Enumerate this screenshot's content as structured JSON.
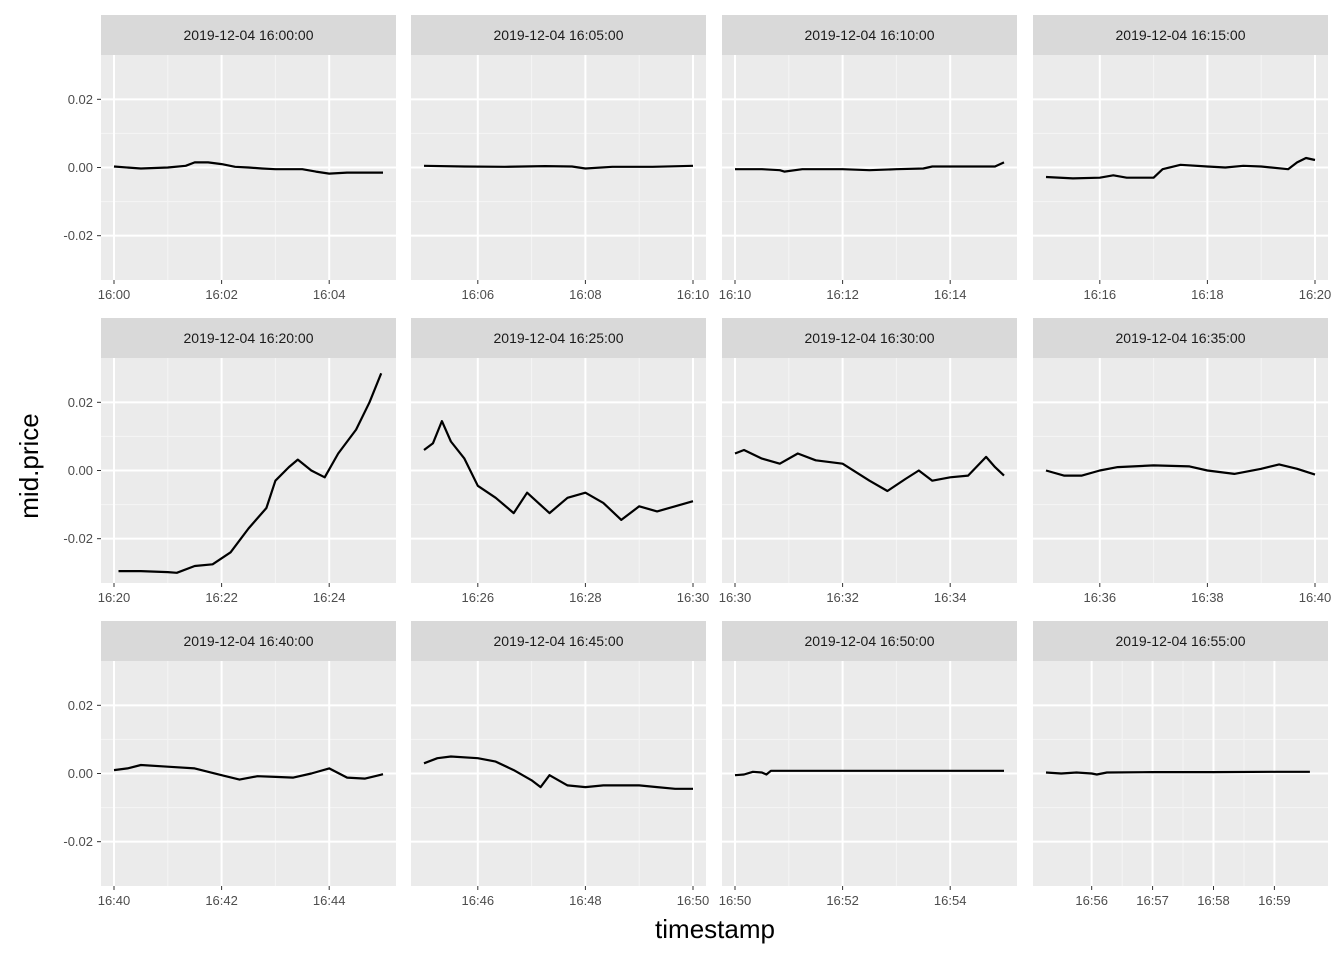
{
  "chart_data": {
    "type": "line",
    "xlabel": "timestamp",
    "ylabel": "mid.price",
    "ylim": [
      -0.033,
      0.033
    ],
    "yticks": [
      {
        "value": 0.02,
        "label": "0.02"
      },
      {
        "value": 0.0,
        "label": "0.00"
      },
      {
        "value": -0.02,
        "label": "-0.02"
      }
    ],
    "grid": true,
    "line_color": "#000000",
    "panel_background": "#ebebeb",
    "strip_background": "#d9d9d9",
    "facets": [
      {
        "label": "2019-12-04 16:00:00",
        "xlim": [
          "16:00",
          "16:05"
        ],
        "xticks": [
          "16:00",
          "16:02",
          "16:04"
        ],
        "x": [
          "16:00:00",
          "16:00:30",
          "16:01:00",
          "16:01:20",
          "16:01:30",
          "16:01:45",
          "16:02:00",
          "16:02:15",
          "16:02:30",
          "16:02:45",
          "16:03:00",
          "16:03:30",
          "16:03:45",
          "16:04:00",
          "16:04:20",
          "16:04:40",
          "16:05:00"
        ],
        "y": [
          0.0003,
          -0.0003,
          0.0,
          0.0005,
          0.0015,
          0.0015,
          0.001,
          0.0002,
          0.0,
          -0.0003,
          -0.0005,
          -0.0005,
          -0.0012,
          -0.0018,
          -0.0015,
          -0.0015,
          -0.0015
        ]
      },
      {
        "label": "2019-12-04 16:05:00",
        "xlim": [
          "16:05",
          "16:10"
        ],
        "xticks": [
          "16:06",
          "16:08",
          "16:10"
        ],
        "x": [
          "16:05:00",
          "16:05:45",
          "16:06:30",
          "16:07:15",
          "16:07:45",
          "16:08:00",
          "16:08:30",
          "16:09:15",
          "16:10:00"
        ],
        "y": [
          0.0005,
          0.0003,
          0.0002,
          0.0004,
          0.0003,
          -0.0003,
          0.0002,
          0.0002,
          0.0005
        ]
      },
      {
        "label": "2019-12-04 16:10:00",
        "xlim": [
          "16:10",
          "16:15"
        ],
        "xticks": [
          "16:10",
          "16:12",
          "16:14"
        ],
        "x": [
          "16:10:00",
          "16:10:30",
          "16:10:50",
          "16:10:55",
          "16:11:15",
          "16:12:00",
          "16:12:30",
          "16:13:00",
          "16:13:30",
          "16:13:40",
          "16:14:20",
          "16:14:50",
          "16:15:00"
        ],
        "y": [
          -0.0005,
          -0.0005,
          -0.0008,
          -0.0012,
          -0.0005,
          -0.0005,
          -0.0008,
          -0.0005,
          -0.0003,
          0.0003,
          0.0003,
          0.0003,
          0.0015
        ]
      },
      {
        "label": "2019-12-04 16:15:00",
        "xlim": [
          "16:15",
          "16:20"
        ],
        "xticks": [
          "16:16",
          "16:18",
          "16:20"
        ],
        "x": [
          "16:15:00",
          "16:15:30",
          "16:16:00",
          "16:16:15",
          "16:16:30",
          "16:17:00",
          "16:17:10",
          "16:17:30",
          "16:18:00",
          "16:18:20",
          "16:18:40",
          "16:19:00",
          "16:19:30",
          "16:19:40",
          "16:19:50",
          "16:20:00"
        ],
        "y": [
          -0.0028,
          -0.0032,
          -0.003,
          -0.0023,
          -0.003,
          -0.003,
          -0.0005,
          0.0008,
          0.0003,
          0.0,
          0.0005,
          0.0003,
          -0.0005,
          0.0015,
          0.0028,
          0.0022
        ]
      },
      {
        "label": "2019-12-04 16:20:00",
        "xlim": [
          "16:20",
          "16:25"
        ],
        "xticks": [
          "16:20",
          "16:22",
          "16:24"
        ],
        "x": [
          "16:20:05",
          "16:20:30",
          "16:21:00",
          "16:21:10",
          "16:21:30",
          "16:21:50",
          "16:22:10",
          "16:22:30",
          "16:22:50",
          "16:23:00",
          "16:23:15",
          "16:23:25",
          "16:23:40",
          "16:23:55",
          "16:24:10",
          "16:24:30",
          "16:24:45",
          "16:24:58"
        ],
        "y": [
          -0.0295,
          -0.0295,
          -0.0298,
          -0.03,
          -0.028,
          -0.0275,
          -0.024,
          -0.017,
          -0.011,
          -0.003,
          0.001,
          0.0032,
          0.0,
          -0.002,
          0.005,
          0.012,
          0.02,
          0.0285
        ]
      },
      {
        "label": "2019-12-04 16:25:00",
        "xlim": [
          "16:25",
          "16:30"
        ],
        "xticks": [
          "16:26",
          "16:28",
          "16:30"
        ],
        "x": [
          "16:25:00",
          "16:25:10",
          "16:25:20",
          "16:25:30",
          "16:25:45",
          "16:26:00",
          "16:26:20",
          "16:26:40",
          "16:26:55",
          "16:27:20",
          "16:27:40",
          "16:28:00",
          "16:28:20",
          "16:28:40",
          "16:29:00",
          "16:29:20",
          "16:29:40",
          "16:30:00"
        ],
        "y": [
          0.006,
          0.008,
          0.0145,
          0.0085,
          0.0035,
          -0.0045,
          -0.008,
          -0.0125,
          -0.0065,
          -0.0125,
          -0.008,
          -0.0065,
          -0.0095,
          -0.0145,
          -0.0105,
          -0.012,
          -0.0105,
          -0.009
        ]
      },
      {
        "label": "2019-12-04 16:30:00",
        "xlim": [
          "16:30",
          "16:35"
        ],
        "xticks": [
          "16:30",
          "16:32",
          "16:34"
        ],
        "x": [
          "16:30:00",
          "16:30:10",
          "16:30:30",
          "16:30:50",
          "16:31:10",
          "16:31:30",
          "16:32:00",
          "16:32:30",
          "16:32:50",
          "16:33:10",
          "16:33:25",
          "16:33:40",
          "16:34:00",
          "16:34:20",
          "16:34:40",
          "16:34:50",
          "16:35:00"
        ],
        "y": [
          0.005,
          0.006,
          0.0035,
          0.002,
          0.005,
          0.003,
          0.002,
          -0.003,
          -0.006,
          -0.0025,
          0.0,
          -0.003,
          -0.002,
          -0.0015,
          0.004,
          0.001,
          -0.0015
        ]
      },
      {
        "label": "2019-12-04 16:35:00",
        "xlim": [
          "16:35",
          "16:40"
        ],
        "xticks": [
          "16:36",
          "16:38",
          "16:40"
        ],
        "x": [
          "16:35:00",
          "16:35:20",
          "16:35:40",
          "16:36:00",
          "16:36:20",
          "16:37:00",
          "16:37:40",
          "16:38:00",
          "16:38:30",
          "16:39:00",
          "16:39:20",
          "16:39:40",
          "16:40:00"
        ],
        "y": [
          0.0,
          -0.0015,
          -0.0015,
          0.0,
          0.001,
          0.0015,
          0.0012,
          0.0,
          -0.001,
          0.0005,
          0.0018,
          0.0005,
          -0.0012
        ]
      },
      {
        "label": "2019-12-04 16:40:00",
        "xlim": [
          "16:40",
          "16:45"
        ],
        "xticks": [
          "16:40",
          "16:42",
          "16:44"
        ],
        "x": [
          "16:40:00",
          "16:40:15",
          "16:40:30",
          "16:41:00",
          "16:41:30",
          "16:42:00",
          "16:42:20",
          "16:42:40",
          "16:43:00",
          "16:43:20",
          "16:43:40",
          "16:44:00",
          "16:44:20",
          "16:44:40",
          "16:45:00"
        ],
        "y": [
          0.001,
          0.0015,
          0.0025,
          0.002,
          0.0015,
          -0.0005,
          -0.0018,
          -0.0008,
          -0.001,
          -0.0012,
          0.0,
          0.0015,
          -0.0012,
          -0.0015,
          -0.0002
        ]
      },
      {
        "label": "2019-12-04 16:45:00",
        "xlim": [
          "16:45",
          "16:50"
        ],
        "xticks": [
          "16:46",
          "16:48",
          "16:50"
        ],
        "x": [
          "16:45:00",
          "16:45:15",
          "16:45:30",
          "16:46:00",
          "16:46:20",
          "16:46:40",
          "16:47:00",
          "16:47:10",
          "16:47:20",
          "16:47:40",
          "16:48:00",
          "16:48:20",
          "16:48:40",
          "16:49:00",
          "16:49:20",
          "16:49:40",
          "16:50:00"
        ],
        "y": [
          0.003,
          0.0045,
          0.005,
          0.0045,
          0.0035,
          0.001,
          -0.002,
          -0.004,
          -0.0005,
          -0.0035,
          -0.004,
          -0.0035,
          -0.0035,
          -0.0035,
          -0.004,
          -0.0045,
          -0.0045
        ]
      },
      {
        "label": "2019-12-04 16:50:00",
        "xlim": [
          "16:50",
          "16:55"
        ],
        "xticks": [
          "16:50",
          "16:52",
          "16:54"
        ],
        "x": [
          "16:50:00",
          "16:50:10",
          "16:50:20",
          "16:50:30",
          "16:50:35",
          "16:50:40",
          "16:51:00",
          "16:52:00",
          "16:53:00",
          "16:54:00",
          "16:55:00"
        ],
        "y": [
          -0.0005,
          -0.0003,
          0.0005,
          0.0003,
          -0.0003,
          0.0008,
          0.0008,
          0.0008,
          0.0008,
          0.0008,
          0.0008
        ]
      },
      {
        "label": "2019-12-04 16:55:00",
        "xlim": [
          "16:55:15",
          "16:59:40"
        ],
        "xticks": [
          "16:56",
          "16:57",
          "16:58",
          "16:59"
        ],
        "x": [
          "16:55:15",
          "16:55:30",
          "16:55:45",
          "16:56:00",
          "16:56:05",
          "16:56:15",
          "16:57:00",
          "16:58:00",
          "16:59:00",
          "16:59:35"
        ],
        "y": [
          0.0003,
          0.0,
          0.0003,
          0.0,
          -0.0003,
          0.0003,
          0.0004,
          0.0004,
          0.0005,
          0.0005
        ]
      }
    ]
  }
}
